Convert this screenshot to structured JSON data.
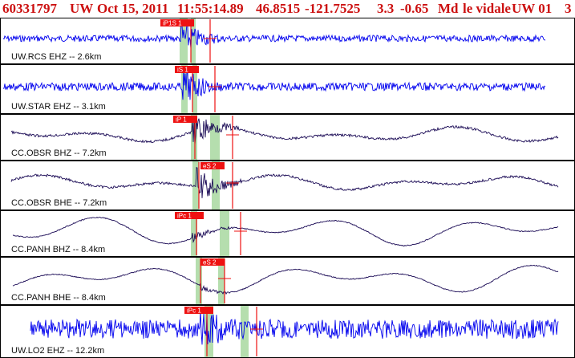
{
  "header": {
    "event_id": "60331797",
    "network": "UW",
    "date": "Oct 15, 2011",
    "time": "11:55:14.89",
    "lat": "46.8515",
    "lon": "-121.7525",
    "depth": "3.3",
    "magnitude": "-0.65",
    "mag_type": "Md",
    "analyst": "le vidale",
    "version": "UW 01",
    "page": "3"
  },
  "colors": {
    "header": "#cc1111",
    "trace_hf": "#0000ee",
    "trace_bb": "#1a0a55",
    "pick": "#ee1111",
    "window": "#a8d8a0",
    "panel_border": "#000000"
  },
  "panels": [
    {
      "label": "UW.RCS EHZ -- 2.6km",
      "pick_tag": "iP1S 1",
      "color": "trace_hf"
    },
    {
      "label": "UW.STAR EHZ -- 3.1km",
      "pick_tag": "iS 1",
      "color": "trace_hf"
    },
    {
      "label": "CC.OBSR BHZ -- 7.2km",
      "pick_tag": "iP 1",
      "color": "trace_bb"
    },
    {
      "label": "CC.OBSR BHE -- 7.2km",
      "pick_tag": "eS 2",
      "color": "trace_bb"
    },
    {
      "label": "CC.PANH BHZ -- 8.4km",
      "pick_tag": "iPc 1",
      "color": "trace_bb"
    },
    {
      "label": "CC.PANH BHE -- 8.4km",
      "pick_tag": "eS 2",
      "color": "trace_bb"
    },
    {
      "label": "UW.LO2 EHZ -- 12.2km",
      "pick_tag": "iPc 1",
      "color": "trace_hf"
    }
  ]
}
